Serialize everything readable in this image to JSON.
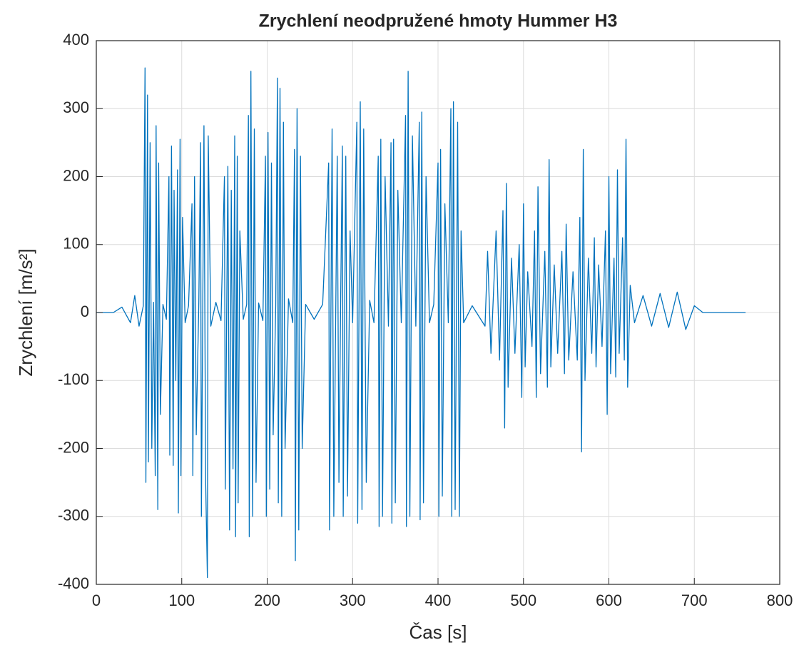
{
  "chart_data": {
    "type": "line",
    "title": "Zrychlení neodpružené hmoty Hummer H3",
    "xlabel": "Čas [s]",
    "ylabel": "Zrychlení [m/s²]",
    "xlim": [
      0,
      800
    ],
    "xticks": [
      0,
      100,
      200,
      300,
      400,
      500,
      600,
      700,
      800
    ],
    "ylim": [
      -400,
      400
    ],
    "yticks": [
      -400,
      -300,
      -200,
      -100,
      0,
      100,
      200,
      300,
      400
    ],
    "grid": true,
    "series": [
      {
        "color": "#0072bd",
        "x": [
          0,
          20,
          30,
          40,
          45,
          50,
          55,
          57,
          58,
          60,
          61,
          63,
          65,
          67,
          69,
          70,
          72,
          73,
          75,
          78,
          82,
          85,
          86,
          88,
          90,
          91,
          93,
          95,
          96,
          98,
          99,
          101,
          104,
          108,
          112,
          113,
          115,
          117,
          120,
          122,
          123,
          126,
          128,
          130,
          131,
          134,
          140,
          146,
          150,
          151,
          154,
          156,
          158,
          160,
          162,
          163,
          165,
          166,
          168,
          172,
          176,
          178,
          179,
          181,
          183,
          185,
          187,
          190,
          195,
          198,
          199,
          201,
          203,
          205,
          207,
          210,
          212,
          213,
          215,
          217,
          219,
          221,
          225,
          230,
          232,
          233,
          235,
          237,
          239,
          241,
          245,
          255,
          265,
          272,
          273,
          276,
          278,
          282,
          284,
          286,
          288,
          289,
          292,
          294,
          297,
          300,
          305,
          306,
          309,
          311,
          313,
          316,
          320,
          325,
          330,
          331,
          333,
          335,
          338,
          342,
          345,
          346,
          348,
          350,
          353,
          357,
          362,
          363,
          365,
          367,
          370,
          374,
          378,
          379,
          381,
          383,
          386,
          390,
          395,
          400,
          401,
          403,
          405,
          408,
          412,
          415,
          416,
          418,
          420,
          423,
          425,
          427,
          430,
          440,
          455,
          458,
          462,
          468,
          472,
          476,
          478,
          480,
          482,
          486,
          490,
          495,
          498,
          500,
          502,
          505,
          510,
          513,
          515,
          517,
          520,
          525,
          528,
          530,
          532,
          536,
          540,
          545,
          548,
          550,
          553,
          558,
          563,
          566,
          568,
          570,
          572,
          576,
          580,
          583,
          585,
          588,
          592,
          596,
          598,
          600,
          602,
          606,
          608,
          610,
          612,
          616,
          618,
          620,
          622,
          625,
          630,
          640,
          650,
          660,
          670,
          680,
          690,
          700,
          710,
          760
        ],
        "values": [
          0,
          0,
          8,
          -15,
          25,
          -20,
          10,
          360,
          -250,
          320,
          -220,
          250,
          -200,
          15,
          -240,
          275,
          -290,
          220,
          -150,
          12,
          -10,
          200,
          -210,
          245,
          -225,
          180,
          -100,
          210,
          -295,
          255,
          -240,
          140,
          -15,
          10,
          160,
          -240,
          200,
          -180,
          15,
          250,
          -300,
          275,
          -250,
          -390,
          260,
          -20,
          15,
          -12,
          200,
          -260,
          215,
          -320,
          180,
          -230,
          260,
          -330,
          230,
          -280,
          120,
          -10,
          12,
          290,
          -330,
          355,
          -300,
          270,
          -250,
          14,
          -12,
          230,
          -300,
          265,
          -260,
          220,
          -180,
          10,
          345,
          -280,
          330,
          -300,
          280,
          -200,
          20,
          -15,
          240,
          -365,
          300,
          -320,
          230,
          -200,
          12,
          -10,
          12,
          220,
          -320,
          270,
          -300,
          230,
          -250,
          15,
          245,
          -300,
          230,
          -270,
          120,
          -15,
          280,
          -310,
          310,
          -290,
          270,
          -250,
          18,
          -15,
          230,
          -315,
          255,
          -300,
          200,
          -20,
          250,
          -310,
          255,
          -280,
          180,
          -15,
          290,
          -315,
          355,
          -300,
          260,
          -20,
          280,
          -305,
          295,
          -280,
          200,
          -15,
          12,
          220,
          -300,
          240,
          -270,
          160,
          -15,
          300,
          -300,
          310,
          -290,
          280,
          -300,
          120,
          -15,
          10,
          -20,
          90,
          -60,
          120,
          -70,
          150,
          -170,
          190,
          -110,
          80,
          -60,
          100,
          -125,
          160,
          -80,
          60,
          -50,
          120,
          -125,
          185,
          -90,
          90,
          -110,
          225,
          -80,
          70,
          -60,
          90,
          -90,
          130,
          -70,
          60,
          -70,
          140,
          -205,
          240,
          -100,
          80,
          -60,
          110,
          -80,
          70,
          -50,
          120,
          -150,
          200,
          -90,
          80,
          -95,
          210,
          -60,
          110,
          -70,
          255,
          -110,
          40,
          -15,
          25,
          -20,
          28,
          -22,
          30,
          -25,
          10,
          0,
          0
        ]
      }
    ]
  }
}
